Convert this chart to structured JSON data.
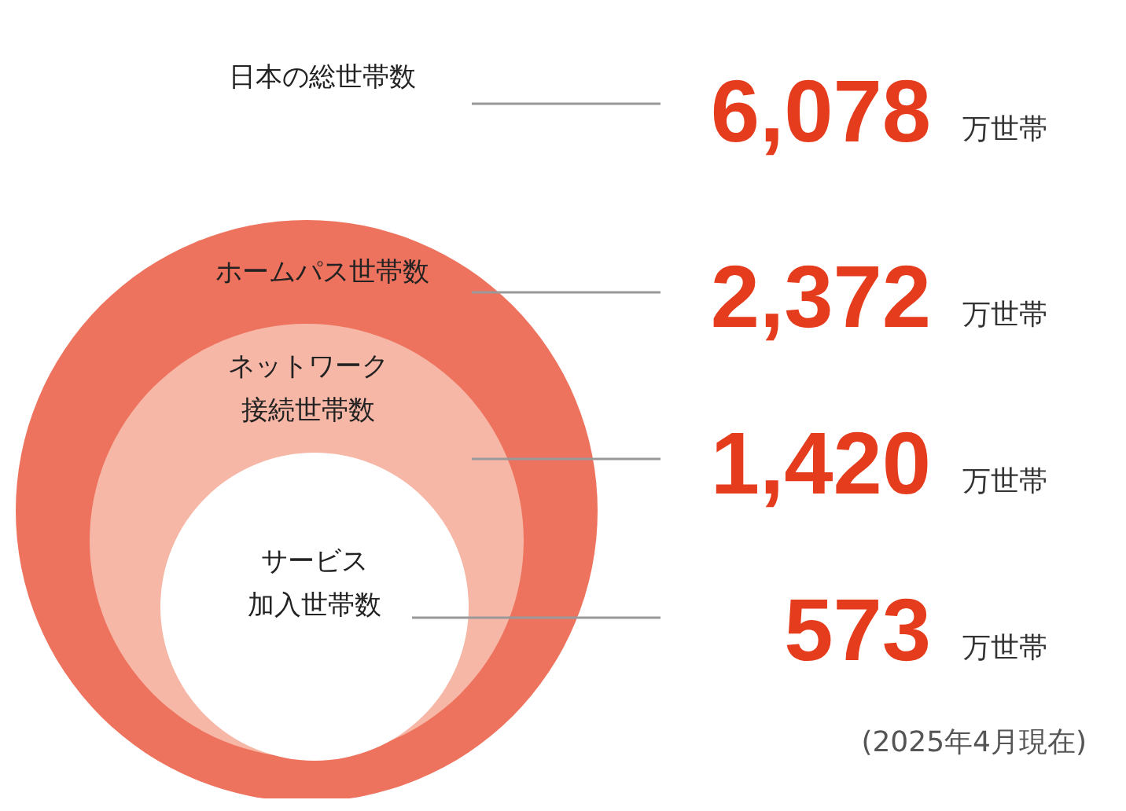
{
  "chart_data": {
    "type": "other",
    "categories": [
      "日本の総世帯数",
      "ホームパス世帯数",
      "ネットワーク接続世帯数",
      "サービス加入世帯数"
    ],
    "values": [
      6078,
      2372,
      1420,
      573
    ],
    "value_labels": [
      "6,078 万世帯",
      "2,372 万世帯",
      "1,420 万世帯",
      "573 万世帯"
    ],
    "colors": [
      null,
      "#ee735e",
      "#f6b7a6",
      "#ffffff"
    ],
    "annotations": [
      "(2025年4月現在)"
    ]
  }
}
